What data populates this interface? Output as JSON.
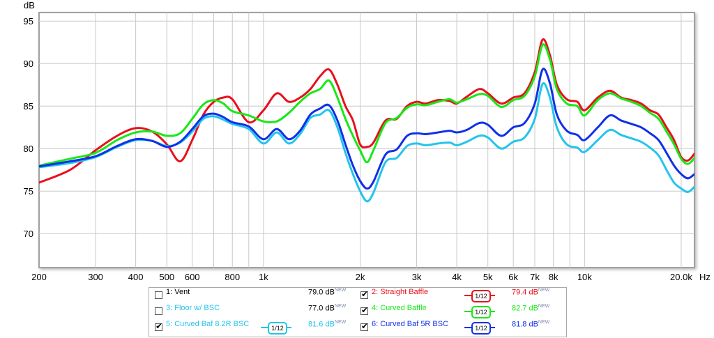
{
  "chart_data": {
    "type": "line",
    "ylabel": "dB",
    "xunit": "Hz",
    "xscale": "log",
    "xlim": [
      200,
      22000
    ],
    "ylim": [
      66,
      96
    ],
    "grid": true,
    "yticks": [
      {
        "value": 95,
        "label": "95"
      },
      {
        "value": 90,
        "label": "90"
      },
      {
        "value": 85,
        "label": "85"
      },
      {
        "value": 80,
        "label": "80"
      },
      {
        "value": 75,
        "label": "75"
      },
      {
        "value": 70,
        "label": "70"
      }
    ],
    "xticks": [
      {
        "value": 200,
        "label": "200"
      },
      {
        "value": 300,
        "label": "300"
      },
      {
        "value": 400,
        "label": "400"
      },
      {
        "value": 500,
        "label": "500"
      },
      {
        "value": 600,
        "label": "600"
      },
      {
        "value": 800,
        "label": "800"
      },
      {
        "value": 1000,
        "label": "1k"
      },
      {
        "value": 2000,
        "label": "2k"
      },
      {
        "value": 3000,
        "label": "3k"
      },
      {
        "value": 4000,
        "label": "4k"
      },
      {
        "value": 5000,
        "label": "5k"
      },
      {
        "value": 6000,
        "label": "6k"
      },
      {
        "value": 7000,
        "label": "7k"
      },
      {
        "value": 8000,
        "label": "8k"
      },
      {
        "value": 10000,
        "label": "10k"
      },
      {
        "value": 20000,
        "label": "20.0k"
      }
    ],
    "minor_gridlines": [
      700,
      900,
      9000
    ],
    "series": [
      {
        "name": "Straight Baffle",
        "color": "#e8101c",
        "x": [
          200,
          250,
          300,
          350,
          400,
          450,
          500,
          550,
          600,
          650,
          700,
          750,
          800,
          900,
          1000,
          1100,
          1200,
          1300,
          1400,
          1500,
          1600,
          1700,
          1800,
          1900,
          2000,
          2100,
          2200,
          2400,
          2600,
          2800,
          3000,
          3200,
          3500,
          3800,
          4000,
          4300,
          4700,
          5000,
          5500,
          6000,
          6500,
          7000,
          7400,
          7800,
          8200,
          8800,
          9500,
          10000,
          11000,
          12000,
          13000,
          14000,
          15000,
          16000,
          17000,
          18000,
          19000,
          20000,
          21000,
          22000
        ],
        "y": [
          76,
          77.5,
          79.8,
          81.5,
          82.4,
          82,
          80.5,
          78.5,
          81,
          84,
          85.5,
          86,
          85.8,
          83.1,
          84.5,
          86.5,
          85.5,
          86,
          87,
          88.5,
          89.3,
          87.5,
          85,
          83.3,
          80.5,
          80.2,
          80.7,
          83.3,
          83.5,
          85,
          85.5,
          85.3,
          85.7,
          85.6,
          85.3,
          86.1,
          87,
          86.5,
          85.3,
          86,
          86.5,
          89,
          92.8,
          91,
          87.5,
          85.8,
          85.5,
          84.5,
          86,
          86.8,
          86,
          85.7,
          85.3,
          84.5,
          84,
          82.5,
          81,
          79,
          78.6,
          79.4
        ]
      },
      {
        "name": "Curved Baffle",
        "color": "#18e818",
        "x": [
          200,
          250,
          300,
          350,
          400,
          450,
          500,
          550,
          600,
          650,
          700,
          750,
          800,
          900,
          1000,
          1100,
          1200,
          1300,
          1400,
          1500,
          1600,
          1700,
          1800,
          1900,
          2000,
          2100,
          2200,
          2400,
          2600,
          2800,
          3000,
          3200,
          3500,
          3800,
          4000,
          4300,
          4700,
          5000,
          5500,
          6000,
          6500,
          7000,
          7400,
          7800,
          8200,
          8800,
          9500,
          10000,
          11000,
          12000,
          13000,
          14000,
          15000,
          16000,
          17000,
          18000,
          19000,
          20000,
          21000,
          22000
        ],
        "y": [
          78,
          78.8,
          79.5,
          81,
          81.9,
          82,
          81.5,
          81.8,
          83.5,
          85.2,
          85.7,
          85.3,
          84.4,
          83.9,
          83.2,
          83.2,
          84.2,
          85.5,
          86.5,
          87,
          88,
          86,
          83.5,
          81.5,
          79.8,
          78.4,
          79.8,
          83,
          83.6,
          84.8,
          85.2,
          85.1,
          85.5,
          85.8,
          85.4,
          85.8,
          86.4,
          86.2,
          84.9,
          85.7,
          86.2,
          88.5,
          92.2,
          90.5,
          87,
          85.3,
          85,
          83.9,
          85.7,
          86.5,
          85.9,
          85.5,
          85,
          84.2,
          83.5,
          82,
          80.5,
          78.8,
          78.2,
          78.9
        ]
      },
      {
        "name": "Curved Baf 8.2R BSC",
        "color": "#24c4ec",
        "x": [
          200,
          250,
          300,
          350,
          400,
          450,
          500,
          550,
          600,
          650,
          700,
          750,
          800,
          900,
          1000,
          1100,
          1200,
          1300,
          1400,
          1500,
          1600,
          1700,
          1800,
          1900,
          2000,
          2100,
          2200,
          2400,
          2600,
          2800,
          3000,
          3200,
          3500,
          3800,
          4000,
          4300,
          4700,
          5000,
          5500,
          6000,
          6500,
          7000,
          7400,
          7800,
          8200,
          8800,
          9500,
          10000,
          11000,
          12000,
          13000,
          14000,
          15000,
          16000,
          17000,
          18000,
          19000,
          20000,
          21000,
          22000
        ],
        "y": [
          77.8,
          78.3,
          79,
          80.2,
          81,
          80.9,
          80.3,
          80.7,
          82,
          83.5,
          83.8,
          83.4,
          82.9,
          82.3,
          80.6,
          81.9,
          80.6,
          81.7,
          83.6,
          84,
          84.5,
          82.5,
          79.5,
          77,
          75,
          73.8,
          74.8,
          78.4,
          78.9,
          80.3,
          80.6,
          80.4,
          80.6,
          80.7,
          80.4,
          80.8,
          81.5,
          81.3,
          80,
          80.8,
          81.3,
          83.5,
          87.6,
          86,
          82.5,
          80.5,
          80.1,
          79.6,
          81,
          82.2,
          81.6,
          81.2,
          80.8,
          80.1,
          79.2,
          77.5,
          76,
          75.3,
          74.9,
          75.5
        ]
      },
      {
        "name": "Curved Baf 5R BSC",
        "color": "#1030e8",
        "x": [
          200,
          250,
          300,
          350,
          400,
          450,
          500,
          550,
          600,
          650,
          700,
          750,
          800,
          900,
          1000,
          1100,
          1200,
          1300,
          1400,
          1500,
          1600,
          1700,
          1800,
          1900,
          2000,
          2100,
          2200,
          2400,
          2600,
          2800,
          3000,
          3200,
          3500,
          3800,
          4000,
          4300,
          4700,
          5000,
          5500,
          6000,
          6500,
          7000,
          7400,
          7800,
          8200,
          8800,
          9500,
          10000,
          11000,
          12000,
          13000,
          14000,
          15000,
          16000,
          17000,
          18000,
          19000,
          20000,
          21000,
          22000
        ],
        "y": [
          77.9,
          78.5,
          79.1,
          80.3,
          81.1,
          80.9,
          80.2,
          80.8,
          82.3,
          83.8,
          84.1,
          83.7,
          83.1,
          82.6,
          81.1,
          82.3,
          81.1,
          82.1,
          84,
          84.7,
          85.1,
          83.3,
          80.5,
          78,
          76.2,
          75.3,
          76.1,
          79.3,
          79.9,
          81.5,
          81.8,
          81.7,
          81.9,
          82.1,
          81.9,
          82.2,
          83,
          82.8,
          81.5,
          82.5,
          83,
          85.3,
          89.3,
          87.7,
          84,
          82.1,
          81.6,
          81,
          82.5,
          83.9,
          83.3,
          82.9,
          82.5,
          81.8,
          81,
          79.5,
          78,
          77,
          76.5,
          77
        ]
      }
    ]
  },
  "legend": {
    "rows": [
      [
        {
          "num_label": "1: Vent",
          "checked": false,
          "color": "#000000",
          "value": "79.0 dB",
          "tag": "NEW",
          "smoothing": ""
        },
        {
          "num_label": "2: Straight Baffle",
          "checked": true,
          "color": "#e8101c",
          "value": "79.4 dB",
          "tag": "NEW",
          "smoothing": "1/12"
        }
      ],
      [
        {
          "num_label": "3: Floor w/ BSC",
          "checked": false,
          "color": "#24c4ec",
          "value": "77.0 dB",
          "tag": "NEW",
          "smoothing": ""
        },
        {
          "num_label": "4: Curved Baffle",
          "checked": true,
          "color": "#18e818",
          "value": "82.7 dB",
          "tag": "NEW",
          "smoothing": "1/12"
        }
      ],
      [
        {
          "num_label": "5: Curved Baf 8.2R BSC",
          "checked": true,
          "color": "#24c4ec",
          "value": "81.6 dB",
          "tag": "NEW",
          "smoothing": "1/12"
        },
        {
          "num_label": "6: Curved Baf 5R BSC",
          "checked": true,
          "color": "#1030e8",
          "value": "81.8 dB",
          "tag": "NEW",
          "smoothing": "1/12"
        }
      ]
    ]
  }
}
